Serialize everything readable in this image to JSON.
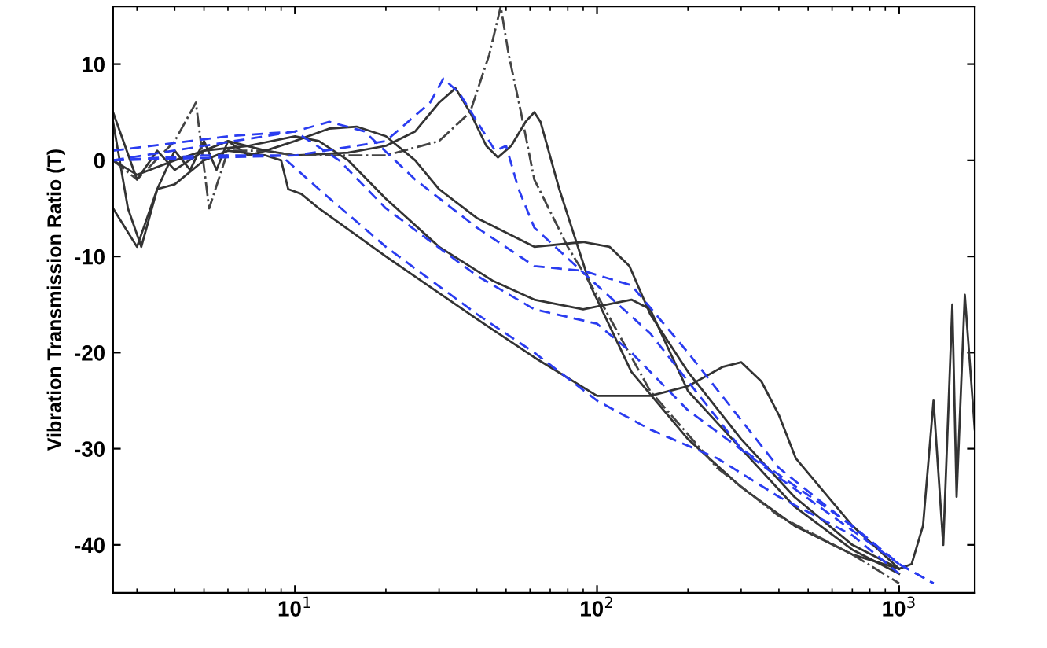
{
  "chart_data": {
    "type": "line",
    "ylabel": "Vibration Transmission Ratio (T)",
    "log": "x",
    "xlim": [
      2.5,
      1780
    ],
    "xticks": [
      {
        "value": 10,
        "label": "10$^{1}$"
      },
      {
        "value": 100,
        "label": "10$^{2}$"
      },
      {
        "value": 1000,
        "label": "10$^{3}$"
      }
    ],
    "ylim": [
      -45,
      16
    ],
    "yticks": [
      -40,
      -30,
      -20,
      -10,
      0,
      10
    ],
    "grid": false,
    "series": [
      {
        "color": "#333333",
        "line_style": "solid",
        "x": [
          2.5,
          2.8,
          3.1,
          3.5,
          4,
          4.5,
          5,
          5.5,
          6,
          7,
          8,
          10,
          15,
          20,
          25,
          30,
          34,
          38,
          43,
          47,
          52,
          58,
          62,
          65,
          75,
          95,
          130,
          200,
          300,
          450,
          700,
          1000,
          1100,
          1200,
          1300,
          1400,
          1500,
          1550,
          1650,
          1780
        ],
        "values": [
          4,
          -5,
          -9,
          -3,
          1,
          -1,
          2,
          -1,
          2,
          0.5,
          1,
          0.5,
          0.8,
          1.5,
          3,
          6,
          7.5,
          5,
          1.5,
          0.3,
          1.5,
          4,
          5,
          4,
          -3,
          -13,
          -22,
          -29,
          -34,
          -38,
          -41,
          -42.5,
          -42,
          -38,
          -25,
          -40,
          -15,
          -35,
          -14,
          -28
        ]
      },
      {
        "color": "#444444",
        "line_style": "dashdot",
        "x": [
          2.5,
          3,
          4,
          4.7,
          5.2,
          6,
          8,
          10,
          20,
          30,
          38,
          44,
          48,
          51,
          56,
          62,
          80,
          100,
          150,
          250,
          400,
          700,
          1000
        ],
        "values": [
          0,
          -2,
          2,
          6,
          -5,
          1,
          1,
          0.5,
          0.5,
          2,
          5,
          11,
          16,
          11,
          5,
          -2,
          -9,
          -14,
          -24,
          -32,
          -37,
          -41,
          -44
        ]
      },
      {
        "color": "#333333",
        "line_style": "solid",
        "x": [
          2.5,
          3,
          3.5,
          4,
          5,
          6,
          8,
          10,
          13,
          16,
          20,
          25,
          30,
          40,
          62,
          90,
          110,
          128,
          150,
          200,
          300,
          450,
          700,
          1000
        ],
        "values": [
          5,
          -2,
          1,
          -1,
          1,
          2,
          1,
          2,
          3.3,
          3.5,
          2.5,
          0,
          -3,
          -6,
          -9,
          -8.5,
          -9,
          -11,
          -16,
          -22,
          -29,
          -35,
          -40,
          -42.5
        ]
      },
      {
        "color": "#333333",
        "line_style": "solid",
        "x": [
          2.5,
          3,
          4,
          5,
          7,
          10,
          12,
          15,
          20,
          30,
          45,
          62,
          90,
          130,
          150,
          200,
          300,
          450,
          700,
          1000
        ],
        "values": [
          0,
          -1.5,
          0,
          1,
          1.5,
          2.5,
          2,
          0,
          -4,
          -9,
          -12.5,
          -14.5,
          -15.5,
          -14.5,
          -15.5,
          -24,
          -30,
          -36,
          -40.5,
          -43
        ]
      },
      {
        "color": "#333333",
        "line_style": "solid",
        "x": [
          2.5,
          3,
          3.5,
          4,
          5,
          6,
          8,
          9,
          9.5,
          10.5,
          12,
          20,
          40,
          62,
          100,
          150,
          200,
          260,
          300,
          350,
          400,
          455,
          700,
          1000
        ],
        "values": [
          -5,
          -9,
          -3,
          -2.5,
          0,
          1,
          0.5,
          0,
          -3,
          -3.5,
          -5,
          -10,
          -16.5,
          -20.5,
          -24.5,
          -24.5,
          -23.5,
          -21.5,
          -21,
          -23,
          -26.5,
          -31,
          -38,
          -42.5
        ]
      },
      {
        "color": "#2a3cf0",
        "line_style": "dashed",
        "x": [
          2.5,
          10,
          20,
          28,
          31,
          35,
          42,
          46,
          50,
          55,
          62,
          100,
          150,
          300,
          700,
          1000,
          1300
        ],
        "values": [
          0,
          0.5,
          2,
          6,
          8.5,
          7,
          3,
          1,
          1.5,
          -3,
          -7,
          -13,
          -18,
          -30,
          -38,
          -42,
          -44
        ]
      },
      {
        "color": "#2a3cf0",
        "line_style": "dashed",
        "x": [
          2.5,
          6,
          10,
          13,
          17,
          25,
          40,
          62,
          90,
          130,
          200,
          400,
          1000,
          1300
        ],
        "values": [
          1,
          2.5,
          3,
          4,
          3,
          -2,
          -7,
          -11,
          -11.5,
          -13,
          -20,
          -32,
          -42,
          -44
        ]
      },
      {
        "color": "#2a3cf0",
        "line_style": "dashed",
        "x": [
          2.5,
          5,
          10,
          14,
          20,
          40,
          62,
          100,
          130,
          200,
          400,
          1000
        ],
        "values": [
          0,
          1.5,
          3,
          0,
          -5,
          -12,
          -15.5,
          -17,
          -20,
          -26,
          -33,
          -42
        ]
      },
      {
        "color": "#2a3cf0",
        "line_style": "dashed",
        "x": [
          2.5,
          5,
          9,
          12,
          20,
          40,
          62,
          100,
          150,
          250,
          400,
          700,
          1000
        ],
        "values": [
          0,
          0.5,
          0.5,
          -3,
          -9,
          -16,
          -20,
          -25,
          -28,
          -31,
          -35,
          -39,
          -43
        ]
      }
    ]
  }
}
